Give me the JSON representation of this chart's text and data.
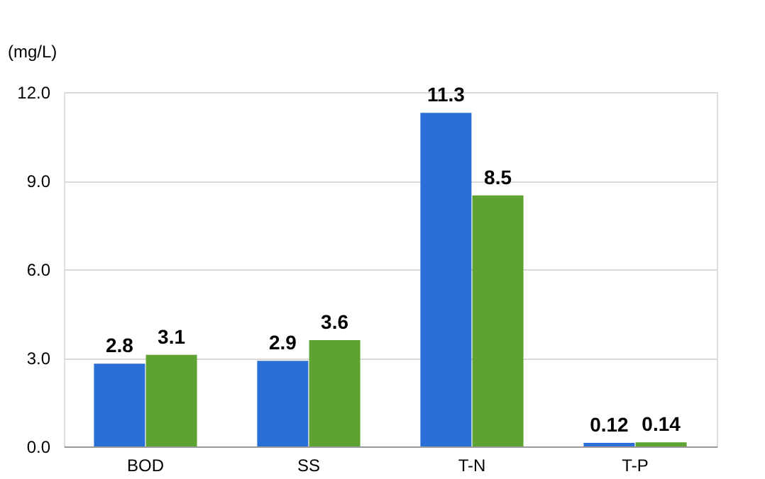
{
  "chart_data": {
    "type": "bar",
    "ylabel": "(mg/L)",
    "categories": [
      "BOD",
      "SS",
      "T-N",
      "T-P"
    ],
    "series": [
      {
        "color": "#2a6fd8",
        "values": [
          2.8,
          2.9,
          11.3,
          0.12
        ]
      },
      {
        "color": "#5ea332",
        "values": [
          3.1,
          3.6,
          8.5,
          0.14
        ]
      }
    ],
    "ylim": [
      0,
      12
    ],
    "yticks": [
      {
        "value": 0,
        "label": "0.0"
      },
      {
        "value": 3,
        "label": "3.0"
      },
      {
        "value": 6,
        "label": "6.0"
      },
      {
        "value": 9,
        "label": "9.0"
      },
      {
        "value": 12,
        "label": "12.0"
      }
    ],
    "grid": "y",
    "data_labels": true
  }
}
